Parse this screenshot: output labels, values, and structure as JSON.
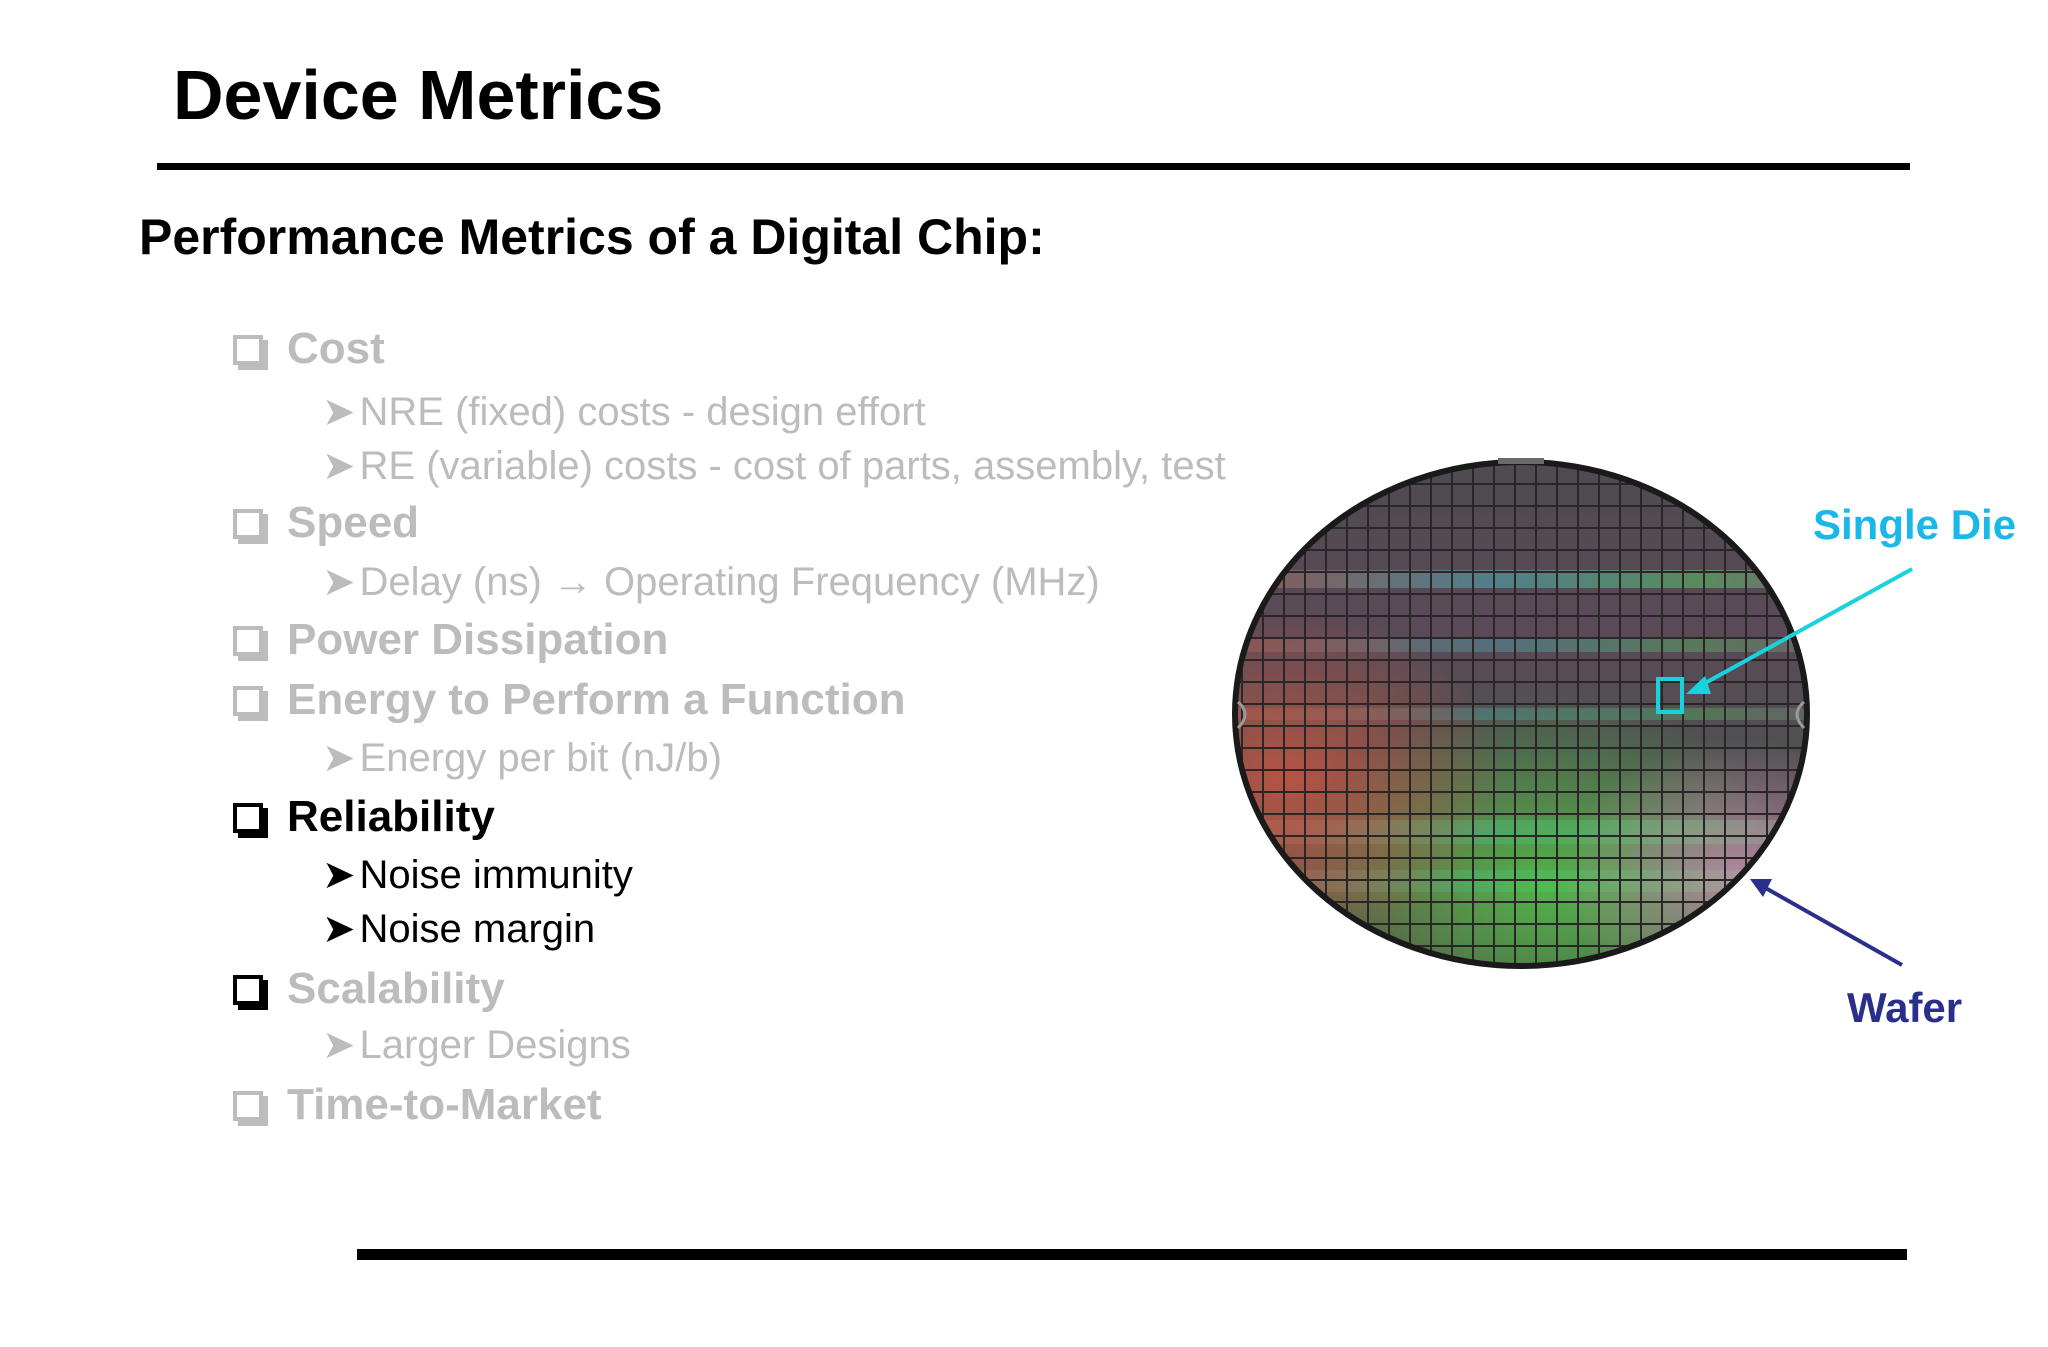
{
  "slide": {
    "title": "Device Metrics",
    "subtitle": "Performance Metrics of a Digital Chip:"
  },
  "metrics": [
    {
      "label": "Cost",
      "state": "dimmed",
      "subs": [
        "NRE (fixed) costs - design effort",
        "RE (variable) costs - cost of parts, assembly, test"
      ]
    },
    {
      "label": "Speed",
      "state": "dimmed",
      "subs": [
        "Delay (ns) → Operating Frequency (MHz)"
      ]
    },
    {
      "label": "Power Dissipation",
      "state": "dimmed",
      "subs": []
    },
    {
      "label": "Energy to Perform a Function",
      "state": "dimmed",
      "subs": [
        "Energy per bit (nJ/b)"
      ]
    },
    {
      "label": "Reliability",
      "state": "highlighted",
      "subs": [
        "Noise immunity",
        "Noise margin"
      ]
    },
    {
      "label": "Scalability",
      "state": "dimmed",
      "subs": [
        "Larger Designs"
      ]
    },
    {
      "label": "Time-to-Market",
      "state": "dimmed",
      "subs": []
    }
  ],
  "figure": {
    "single_die_label": "Single Die",
    "wafer_label": "Wafer",
    "colors": {
      "single_die": "#1ab8e8",
      "die_marker": "#19d3dc",
      "wafer": "#2b2f8c",
      "dimmed_text": "#bcbcbc"
    }
  },
  "icons": {
    "checkbox": "square-checkbox-icon",
    "bullet": "arrowhead-bullet-icon",
    "arrow": "right-arrow-icon"
  }
}
